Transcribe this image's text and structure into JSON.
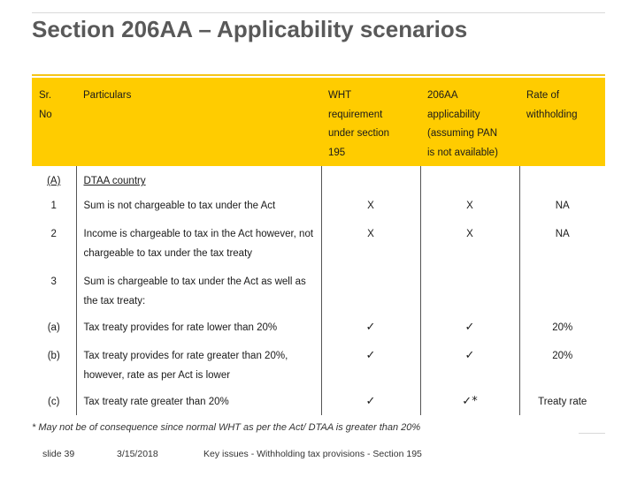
{
  "title": "Section 206AA – Applicability scenarios",
  "table": {
    "headers": {
      "sr": [
        "Sr.",
        "No"
      ],
      "particulars": [
        "Particulars"
      ],
      "wht": [
        "WHT",
        "requirement",
        "under section",
        "195"
      ],
      "applicability": [
        "206AA",
        "applicability",
        "(assuming PAN",
        "is not available)"
      ],
      "rate": [
        "Rate of",
        "withholding"
      ]
    },
    "rows": [
      {
        "sr": "(A)",
        "particulars": "DTAA country",
        "wht": "",
        "app": "",
        "rate": ""
      },
      {
        "sr": "1",
        "particulars": "Sum is not chargeable to tax under the Act",
        "wht": "X",
        "app": "X",
        "rate": "NA"
      },
      {
        "sr": "2",
        "particulars": "Income is chargeable to tax in the Act however, not chargeable to tax under the tax treaty",
        "wht": "X",
        "app": "X",
        "rate": "NA"
      },
      {
        "sr": "3",
        "particulars": "Sum is chargeable to tax under the Act as well as the tax treaty:",
        "wht": "",
        "app": "",
        "rate": ""
      },
      {
        "sr": "(a)",
        "particulars": "Tax treaty provides for rate lower than 20%",
        "wht": "✓",
        "app": "✓",
        "rate": "20%"
      },
      {
        "sr": "(b)",
        "particulars": "Tax treaty provides for rate greater than 20%, however, rate as per Act is lower",
        "wht": "✓",
        "app": "✓",
        "rate": "20%"
      },
      {
        "sr": "(c)",
        "particulars": "Tax treaty rate greater than 20%",
        "wht": "✓",
        "app": "✓*",
        "rate": "Treaty rate"
      }
    ]
  },
  "footnote": "* May not be of consequence since normal WHT as per the Act/ DTAA is greater than 20%",
  "footer": {
    "slide": "slide 39",
    "date": "3/15/2018",
    "text": "Key issues - Withholding tax provisions - Section 195"
  }
}
